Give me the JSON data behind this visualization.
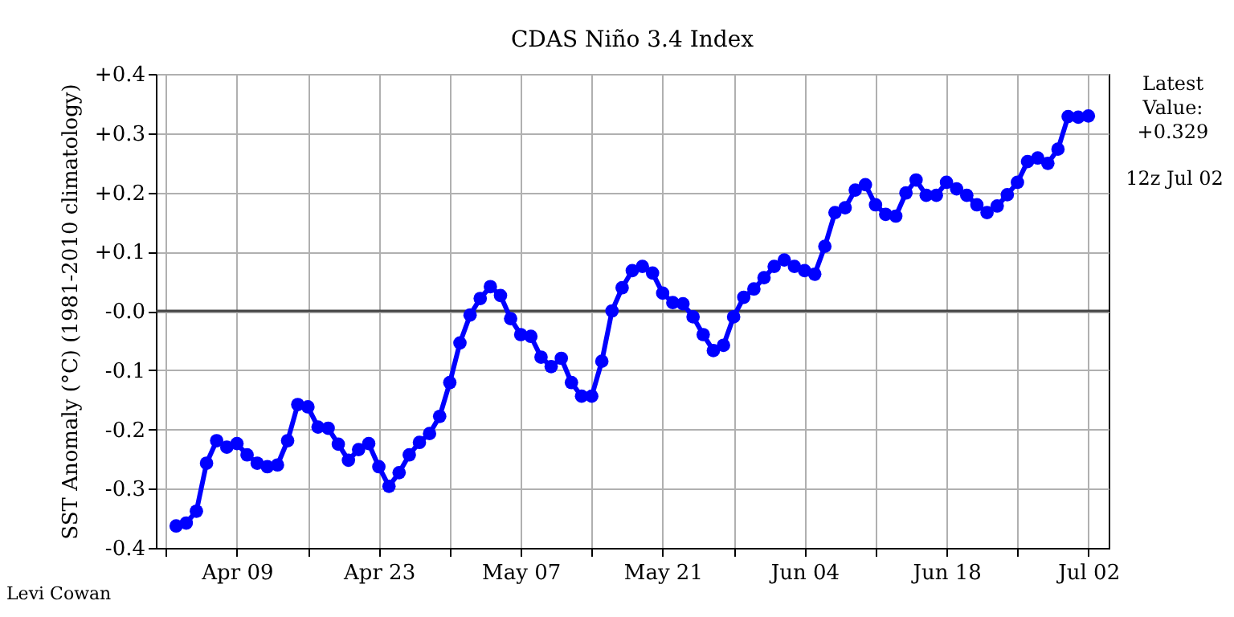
{
  "chart_data": {
    "type": "line",
    "title": "CDAS Niño 3.4 Index",
    "ylabel": "SST Anomaly (°C) (1981-2010 climatology)",
    "x": [
      "--04-03",
      "--04-04",
      "--04-05",
      "--04-06",
      "--04-07",
      "--04-08",
      "--04-09",
      "--04-10",
      "--04-11",
      "--04-12",
      "--04-13",
      "--04-14",
      "--04-15",
      "--04-16",
      "--04-17",
      "--04-18",
      "--04-19",
      "--04-20",
      "--04-21",
      "--04-22",
      "--04-23",
      "--04-24",
      "--04-25",
      "--04-26",
      "--04-27",
      "--04-28",
      "--04-29",
      "--04-30",
      "--05-01",
      "--05-02",
      "--05-03",
      "--05-04",
      "--05-05",
      "--05-06",
      "--05-07",
      "--05-08",
      "--05-09",
      "--05-10",
      "--05-11",
      "--05-12",
      "--05-13",
      "--05-14",
      "--05-15",
      "--05-16",
      "--05-17",
      "--05-18",
      "--05-19",
      "--05-20",
      "--05-21",
      "--05-22",
      "--05-23",
      "--05-24",
      "--05-25",
      "--05-26",
      "--05-27",
      "--05-28",
      "--05-29",
      "--05-30",
      "--05-31",
      "--06-01",
      "--06-02",
      "--06-03",
      "--06-04",
      "--06-05",
      "--06-06",
      "--06-07",
      "--06-08",
      "--06-09",
      "--06-10",
      "--06-11",
      "--06-12",
      "--06-13",
      "--06-14",
      "--06-15",
      "--06-16",
      "--06-17",
      "--06-18",
      "--06-19",
      "--06-20",
      "--06-21",
      "--06-22",
      "--06-23",
      "--06-24",
      "--06-25",
      "--06-26",
      "--06-27",
      "--06-28",
      "--06-29",
      "--06-30",
      "--07-01",
      "--07-02"
    ],
    "series": [
      {
        "color": "#0000ff",
        "values": [
          -0.363,
          -0.358,
          -0.338,
          -0.257,
          -0.219,
          -0.23,
          -0.224,
          -0.243,
          -0.257,
          -0.263,
          -0.26,
          -0.219,
          -0.158,
          -0.162,
          -0.196,
          -0.198,
          -0.225,
          -0.252,
          -0.234,
          -0.224,
          -0.263,
          -0.296,
          -0.273,
          -0.243,
          -0.222,
          -0.207,
          -0.178,
          -0.121,
          -0.054,
          -0.007,
          0.021,
          0.041,
          0.026,
          -0.013,
          -0.04,
          -0.043,
          -0.078,
          -0.094,
          -0.08,
          -0.121,
          -0.144,
          -0.144,
          -0.085,
          0.0,
          0.039,
          0.068,
          0.075,
          0.064,
          0.03,
          0.014,
          0.012,
          -0.01,
          -0.04,
          -0.067,
          -0.058,
          -0.01,
          0.023,
          0.037,
          0.056,
          0.075,
          0.086,
          0.075,
          0.068,
          0.062,
          0.109,
          0.166,
          0.174,
          0.204,
          0.213,
          0.179,
          0.163,
          0.16,
          0.199,
          0.221,
          0.195,
          0.195,
          0.217,
          0.206,
          0.195,
          0.179,
          0.166,
          0.177,
          0.196,
          0.217,
          0.252,
          0.258,
          0.249,
          0.273,
          0.328,
          0.327,
          0.329
        ]
      }
    ],
    "xlim": [
      "--04-01",
      "--07-04"
    ],
    "xticks": [
      {
        "value": "--04-02",
        "label": null
      },
      {
        "value": "--04-09",
        "label": "Apr 09"
      },
      {
        "value": "--04-16",
        "label": null
      },
      {
        "value": "--04-23",
        "label": "Apr 23"
      },
      {
        "value": "--04-30",
        "label": null
      },
      {
        "value": "--05-07",
        "label": "May 07"
      },
      {
        "value": "--05-14",
        "label": null
      },
      {
        "value": "--05-21",
        "label": "May 21"
      },
      {
        "value": "--05-28",
        "label": null
      },
      {
        "value": "--06-04",
        "label": "Jun 04"
      },
      {
        "value": "--06-11",
        "label": null
      },
      {
        "value": "--06-18",
        "label": "Jun 18"
      },
      {
        "value": "--06-25",
        "label": null
      },
      {
        "value": "--07-02",
        "label": "Jul 02"
      }
    ],
    "ylim": [
      -0.4,
      0.4
    ],
    "yticks": [
      {
        "value": -0.4,
        "label": "-0.4"
      },
      {
        "value": -0.3,
        "label": "-0.3"
      },
      {
        "value": -0.2,
        "label": "-0.2"
      },
      {
        "value": -0.1,
        "label": "-0.1"
      },
      {
        "value": 0,
        "label": "-0.0"
      },
      {
        "value": 0.1,
        "label": "+0.1"
      },
      {
        "value": 0.2,
        "label": "+0.2"
      },
      {
        "value": 0.3,
        "label": "+0.3"
      },
      {
        "value": 0.4,
        "label": "+0.4"
      }
    ],
    "ref_lines": [
      {
        "axis": "y",
        "value": 0,
        "color": "#444444"
      }
    ],
    "grid": true,
    "marker": "circle",
    "line_style": "solid",
    "annotations": [
      "Latest\nValue:\n+0.329",
      "12z Jul 02",
      "Levi Cowan"
    ]
  }
}
